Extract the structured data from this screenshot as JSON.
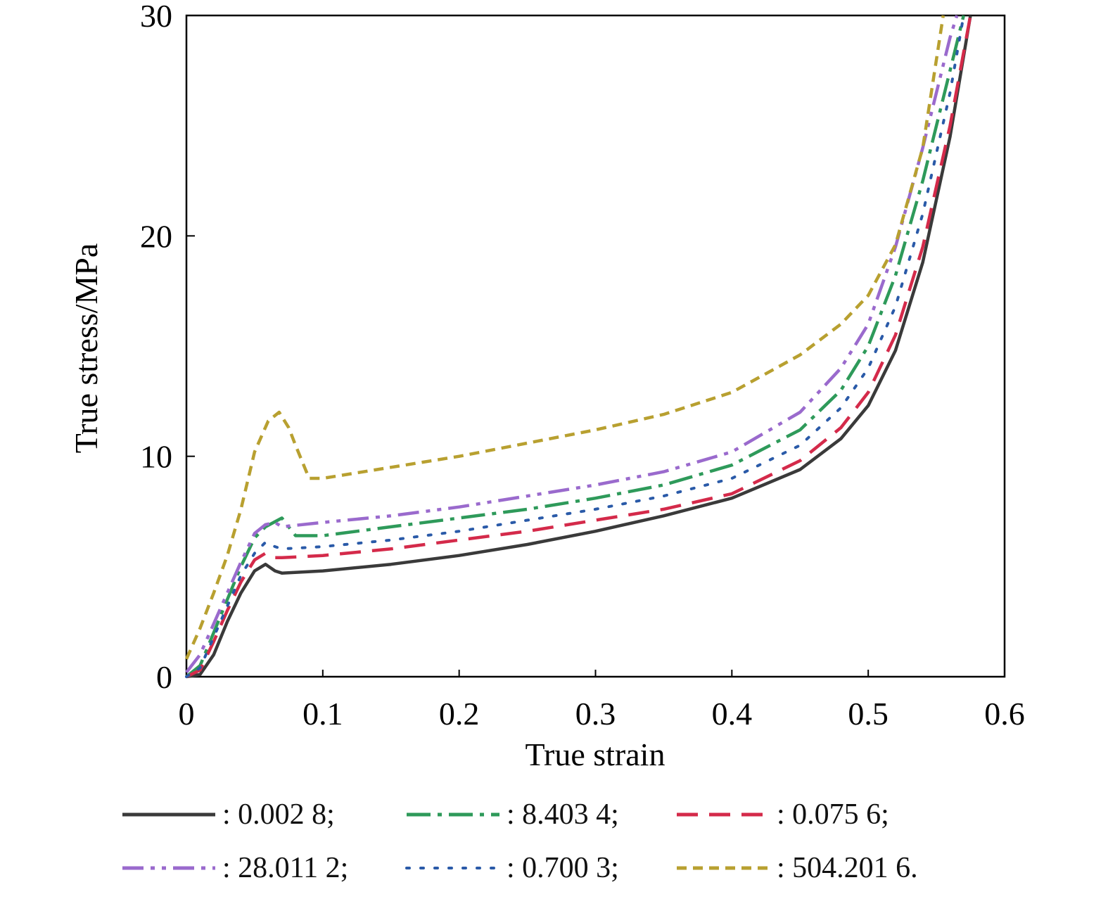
{
  "chart_data": {
    "type": "line",
    "title": "",
    "xlabel": "True strain",
    "ylabel": "True stress/MPa",
    "xlim": [
      0,
      0.6
    ],
    "ylim": [
      0,
      30
    ],
    "xticks": [
      0,
      0.1,
      0.2,
      0.3,
      0.4,
      0.5,
      0.6
    ],
    "xtick_labels": [
      "0",
      "0.1",
      "0.2",
      "0.3",
      "0.4",
      "0.5",
      "0.6"
    ],
    "yticks": [
      0,
      10,
      20,
      30
    ],
    "ytick_labels": [
      "0",
      "10",
      "20",
      "30"
    ],
    "legend_position": "bottom",
    "series": [
      {
        "name": ": 0.002 8;",
        "color": "#3a3a3a",
        "style": "solid",
        "x": [
          0,
          0.01,
          0.02,
          0.03,
          0.04,
          0.05,
          0.058,
          0.065,
          0.07,
          0.1,
          0.15,
          0.2,
          0.25,
          0.3,
          0.35,
          0.4,
          0.45,
          0.48,
          0.5,
          0.52,
          0.54,
          0.56,
          0.575
        ],
        "y": [
          0,
          0.1,
          1.0,
          2.5,
          3.8,
          4.8,
          5.1,
          4.8,
          4.7,
          4.8,
          5.1,
          5.5,
          6.0,
          6.6,
          7.3,
          8.1,
          9.4,
          10.8,
          12.3,
          14.8,
          18.8,
          24.5,
          30
        ]
      },
      {
        "name": ": 8.403 4;",
        "color": "#2e9a5a",
        "style": "dashdot",
        "x": [
          0,
          0.01,
          0.02,
          0.03,
          0.04,
          0.05,
          0.058,
          0.07,
          0.08,
          0.1,
          0.15,
          0.2,
          0.25,
          0.3,
          0.35,
          0.4,
          0.45,
          0.48,
          0.5,
          0.52,
          0.54,
          0.56,
          0.57
        ],
        "y": [
          0,
          0.5,
          2.0,
          3.5,
          5.0,
          6.3,
          6.8,
          7.2,
          6.4,
          6.4,
          6.8,
          7.2,
          7.6,
          8.1,
          8.7,
          9.6,
          11.2,
          13.0,
          15.0,
          18.2,
          22.5,
          27.5,
          30
        ]
      },
      {
        "name": ": 0.075 6;",
        "color": "#d42a4a",
        "style": "dash",
        "x": [
          0,
          0.01,
          0.02,
          0.03,
          0.04,
          0.05,
          0.058,
          0.065,
          0.07,
          0.1,
          0.15,
          0.2,
          0.25,
          0.3,
          0.35,
          0.4,
          0.45,
          0.48,
          0.5,
          0.52,
          0.54,
          0.56,
          0.575
        ],
        "y": [
          0,
          0.3,
          1.6,
          3.0,
          4.3,
          5.3,
          5.6,
          5.4,
          5.4,
          5.5,
          5.8,
          6.2,
          6.6,
          7.1,
          7.6,
          8.3,
          9.8,
          11.3,
          12.9,
          15.5,
          19.5,
          25.0,
          30
        ]
      },
      {
        "name": ": 28.011 2;",
        "color": "#9a6acd",
        "style": "dashdotdot",
        "x": [
          0,
          0.01,
          0.02,
          0.03,
          0.04,
          0.05,
          0.058,
          0.065,
          0.07,
          0.1,
          0.15,
          0.2,
          0.25,
          0.3,
          0.35,
          0.4,
          0.45,
          0.48,
          0.5,
          0.52,
          0.54,
          0.56,
          0.565
        ],
        "y": [
          0.2,
          1.0,
          2.4,
          3.8,
          5.2,
          6.5,
          6.9,
          7.0,
          6.8,
          7.0,
          7.3,
          7.7,
          8.2,
          8.7,
          9.3,
          10.2,
          12.0,
          14.0,
          16.0,
          19.5,
          24.0,
          29.0,
          30
        ]
      },
      {
        "name": ": 0.700 3;",
        "color": "#2a5aa8",
        "style": "dot",
        "x": [
          0,
          0.01,
          0.02,
          0.03,
          0.04,
          0.05,
          0.058,
          0.065,
          0.07,
          0.1,
          0.15,
          0.2,
          0.25,
          0.3,
          0.35,
          0.4,
          0.45,
          0.48,
          0.5,
          0.52,
          0.54,
          0.56,
          0.57
        ],
        "y": [
          0,
          0.4,
          1.8,
          3.2,
          4.6,
          5.6,
          6.1,
          5.9,
          5.8,
          5.9,
          6.2,
          6.6,
          7.1,
          7.6,
          8.2,
          9.0,
          10.5,
          12.2,
          14.0,
          16.8,
          21.0,
          26.5,
          30
        ]
      },
      {
        "name": ": 504.201 6.",
        "color": "#b8a030",
        "style": "shortdash",
        "x": [
          0,
          0.01,
          0.02,
          0.03,
          0.04,
          0.05,
          0.06,
          0.068,
          0.075,
          0.08,
          0.09,
          0.1,
          0.15,
          0.2,
          0.25,
          0.3,
          0.35,
          0.4,
          0.45,
          0.48,
          0.5,
          0.52,
          0.54,
          0.555
        ],
        "y": [
          0.8,
          2.2,
          3.8,
          5.5,
          7.6,
          10.2,
          11.6,
          12.0,
          11.3,
          10.5,
          9.0,
          9.0,
          9.5,
          10.0,
          10.6,
          11.2,
          11.9,
          12.9,
          14.6,
          16.0,
          17.3,
          19.6,
          24.0,
          30
        ]
      }
    ]
  }
}
